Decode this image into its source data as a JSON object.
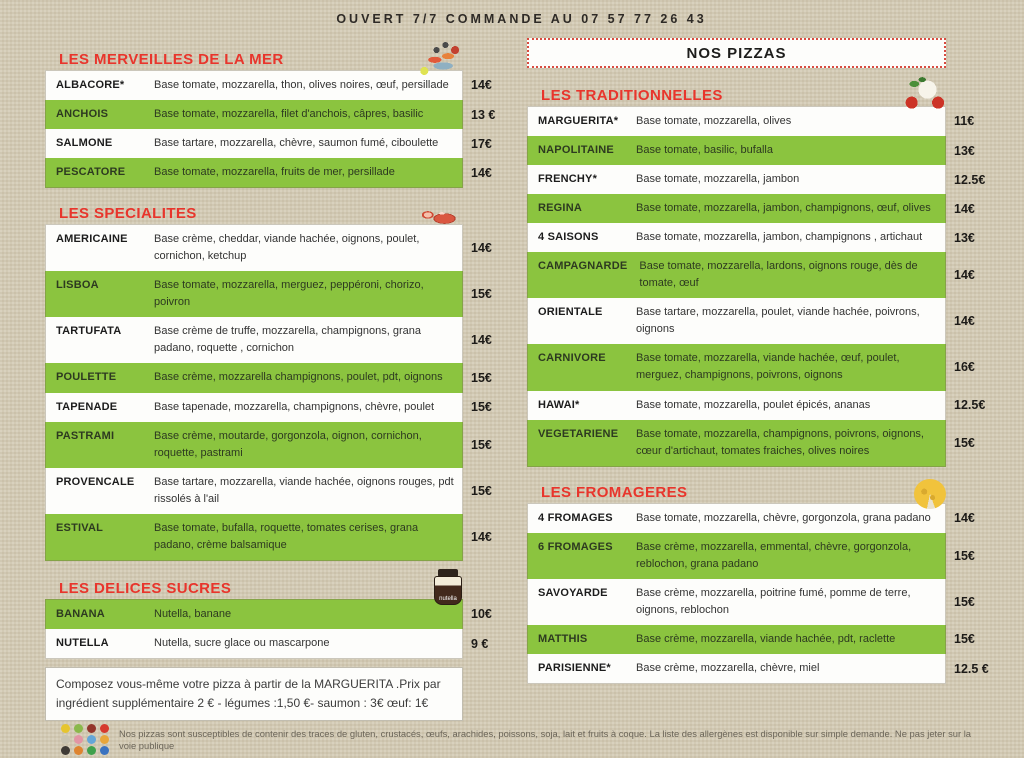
{
  "header": {
    "top_line": "OUVERT 7/7 COMMANDE AU  07 57 77 26 43"
  },
  "colors": {
    "accent_red": "#e8352c",
    "row_green": "#8bc43f",
    "paper_beige": "#d5ccb6",
    "dotted_border_red": "#d84b40"
  },
  "left": {
    "sections": [
      {
        "title": "LES MERVEILLES DE LA MER",
        "icon": "seafood-platter-icon",
        "items": [
          {
            "name": "ALBACORE*",
            "desc": "Base tomate, mozzarella, thon, olives noires, œuf, persillade",
            "price": "14€",
            "shaded": false
          },
          {
            "name": "ANCHOIS",
            "desc": "Base tomate, mozzarella, filet d'anchois, câpres, basilic",
            "price": "13 €",
            "shaded": true
          },
          {
            "name": "SALMONE",
            "desc": "Base tartare, mozzarella, chèvre, saumon fumé, ciboulette",
            "price": "17€",
            "shaded": false
          },
          {
            "name": "PESCATORE",
            "desc": "Base tomate, mozzarella, fruits de mer, persillade",
            "price": "14€",
            "shaded": true
          }
        ]
      },
      {
        "title": "LES SPECIALITES",
        "icon": "salami-icon",
        "items": [
          {
            "name": "AMERICAINE",
            "desc": "Base crème, cheddar, viande hachée, oignons, poulet, cornichon, ketchup",
            "price": "14€",
            "shaded": false
          },
          {
            "name": "LISBOA",
            "desc": "Base tomate, mozzarella, merguez, peppéroni, chorizo, poivron",
            "price": "15€",
            "shaded": true
          },
          {
            "name": "TARTUFATA",
            "desc": "Base crème de truffe, mozzarella, champignons, grana padano, roquette , cornichon",
            "price": "14€",
            "shaded": false
          },
          {
            "name": "POULETTE",
            "desc": "Base crème, mozzarella champignons, poulet, pdt, oignons",
            "price": "15€",
            "shaded": true
          },
          {
            "name": "TAPENADE",
            "desc": "Base tapenade, mozzarella, champignons, chèvre, poulet",
            "price": "15€",
            "shaded": false
          },
          {
            "name": "PASTRAMI",
            "desc": "Base crème, moutarde, gorgonzola, oignon, cornichon, roquette, pastrami",
            "price": "15€",
            "shaded": true
          },
          {
            "name": "PROVENCALE",
            "desc": "Base tartare, mozzarella, viande hachée, oignons rouges, pdt rissolés à l'ail",
            "price": "15€",
            "shaded": false
          },
          {
            "name": "ESTIVAL",
            "desc": "Base tomate, bufalla, roquette, tomates cerises, grana padano, crème balsamique",
            "price": "14€",
            "shaded": true
          }
        ]
      },
      {
        "title": "LES DELICES SUCRES",
        "icon": "nutella-jar-icon",
        "items": [
          {
            "name": "BANANA",
            "desc": "Nutella, banane",
            "price": "10€",
            "shaded": true
          },
          {
            "name": "NUTELLA",
            "desc": "Nutella, sucre glace ou mascarpone",
            "price": "9 €",
            "shaded": false
          }
        ]
      }
    ],
    "note": "Composez vous-même votre pizza à partir de la MARGUERITA .Prix par ingrédient supplémentaire  2 € - légumes :1,50 €- saumon : 3€ œuf: 1€"
  },
  "right": {
    "box_title": "NOS PIZZAS",
    "sections": [
      {
        "title": "LES TRADITIONNELLES",
        "icon": "tomato-mozzarella-icon",
        "items": [
          {
            "name": "MARGUERITA*",
            "desc": "Base tomate, mozzarella, olives",
            "price": "11€",
            "shaded": false
          },
          {
            "name": "NAPOLITAINE",
            "desc": "Base tomate, basilic, bufalla",
            "price": "13€",
            "shaded": true
          },
          {
            "name": "FRENCHY*",
            "desc": "Base tomate, mozzarella, jambon",
            "price": "12.5€",
            "shaded": false
          },
          {
            "name": "REGINA",
            "desc": "Base tomate, mozzarella, jambon, champignons, œuf, olives",
            "price": "14€",
            "shaded": true
          },
          {
            "name": "4 SAISONS",
            "desc": "Base tomate, mozzarella, jambon, champignons , artichaut",
            "price": "13€",
            "shaded": false
          },
          {
            "name": "CAMPAGNARDE",
            "desc": "Base tomate, mozzarella, lardons, oignons rouge, dès de tomate, œuf",
            "price": "14€",
            "shaded": true
          },
          {
            "name": "ORIENTALE",
            "desc": "Base tartare, mozzarella, poulet, viande hachée, poivrons, oignons",
            "price": "14€",
            "shaded": false
          },
          {
            "name": "CARNIVORE",
            "desc": "Base tomate, mozzarella, viande hachée, œuf, poulet, merguez, champignons, poivrons, oignons",
            "price": "16€",
            "shaded": true
          },
          {
            "name": "HAWAI*",
            "desc": "Base tomate, mozzarella, poulet épicés, ananas",
            "price": "12.5€",
            "shaded": false
          },
          {
            "name": "VEGETARIENE",
            "desc": "Base tomate, mozzarella, champignons, poivrons, oignons, cœur d'artichaut, tomates fraiches, olives noires",
            "price": "15€",
            "shaded": true
          }
        ]
      },
      {
        "title": "LES FROMAGERES",
        "icon": "cheese-icon",
        "items": [
          {
            "name": "4 FROMAGES",
            "desc": "Base tomate, mozzarella, chèvre, gorgonzola, grana padano",
            "price": "14€",
            "shaded": false
          },
          {
            "name": "6 FROMAGES",
            "desc": "Base crème, mozzarella, emmental, chèvre, gorgonzola, reblochon,  grana padano",
            "price": "15€",
            "shaded": true
          },
          {
            "name": "SAVOYARDE",
            "desc": "Base crème, mozzarella, poitrine fumé, pomme de terre, oignons, reblochon",
            "price": "15€",
            "shaded": false
          },
          {
            "name": "MATTHIS",
            "desc": "Base crème, mozzarella, viande hachée, pdt, raclette",
            "price": "15€",
            "shaded": true
          },
          {
            "name": "PARISIENNE*",
            "desc": "Base crème, mozzarella, chèvre, miel",
            "price": "12.5 €",
            "shaded": false
          }
        ]
      }
    ]
  },
  "footer": {
    "disclaimer": "Nos pizzas sont susceptibles de contenir des traces de gluten, crustacés, œufs, arachides, poissons, soja, lait et fruits à coque. La liste des allergènes est disponible sur simple demande.  Ne pas jeter sur la voie publique",
    "allergen_icon_colors": [
      "#e6c52f",
      "#8ab84a",
      "#93352b",
      "#d63a2f",
      "#c9c4b2",
      "#e295a4",
      "#64a6d8",
      "#e8a63b",
      "#3f3b36",
      "#de8430",
      "#3fa14c",
      "#3b73c0"
    ]
  }
}
